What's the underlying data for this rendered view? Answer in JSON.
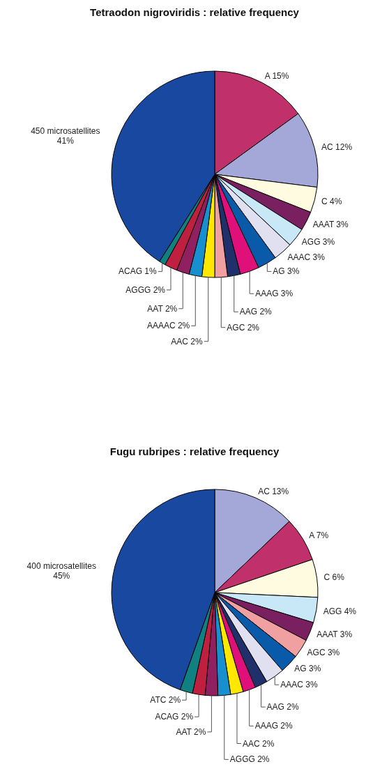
{
  "chart_data": [
    {
      "type": "pie",
      "title": "Tetraodon nigroviridis : relative frequency",
      "categories": [
        "A",
        "AC",
        "C",
        "AAAT",
        "AGG",
        "AAAC",
        "AG",
        "AAAG",
        "AAG",
        "AGC",
        "AAC",
        "AAAAC",
        "AAT",
        "AGGG",
        "ACAG",
        "450 microsatellites"
      ],
      "values": [
        15,
        12,
        4,
        3,
        3,
        3,
        3,
        3,
        2,
        2,
        2,
        2,
        2,
        2,
        1,
        41
      ],
      "value_labels": [
        "15%",
        "12%",
        "4%",
        "3%",
        "3%",
        "3%",
        "3%",
        "3%",
        "2%",
        "2%",
        "2%",
        "2%",
        "2%",
        "2%",
        "1%",
        "41%"
      ],
      "colors": [
        "#c0306a",
        "#a4a8d8",
        "#fffbe0",
        "#7a2060",
        "#c8e8f8",
        "#e0e0f0",
        "#0a5aaa",
        "#e0107a",
        "#20306a",
        "#f0a0a0",
        "#ffe800",
        "#1890d0",
        "#902060",
        "#c02040",
        "#108080",
        "#1848a0"
      ]
    },
    {
      "type": "pie",
      "title": "Fugu rubripes : relative frequency",
      "categories": [
        "AC",
        "A",
        "C",
        "AGG",
        "AAAT",
        "AGC",
        "AG",
        "AAAC",
        "AAG",
        "AAAG",
        "AAC",
        "AGGG",
        "AAT",
        "ACAG",
        "ATC",
        "400 microsatellites"
      ],
      "values": [
        13,
        7,
        6,
        4,
        3,
        3,
        3,
        3,
        2,
        2,
        2,
        2,
        2,
        2,
        2,
        45
      ],
      "value_labels": [
        "13%",
        "7%",
        "6%",
        "4%",
        "3%",
        "3%",
        "3%",
        "3%",
        "2%",
        "2%",
        "2%",
        "2%",
        "2%",
        "2%",
        "2%",
        "45%"
      ],
      "colors": [
        "#a4a8d8",
        "#c0306a",
        "#fffbe0",
        "#c8e8f8",
        "#7a2060",
        "#f0a0a0",
        "#0a5aaa",
        "#e0e0f0",
        "#20306a",
        "#e0107a",
        "#ffe800",
        "#1890d0",
        "#902060",
        "#c02040",
        "#108080",
        "#1848a0"
      ]
    }
  ]
}
